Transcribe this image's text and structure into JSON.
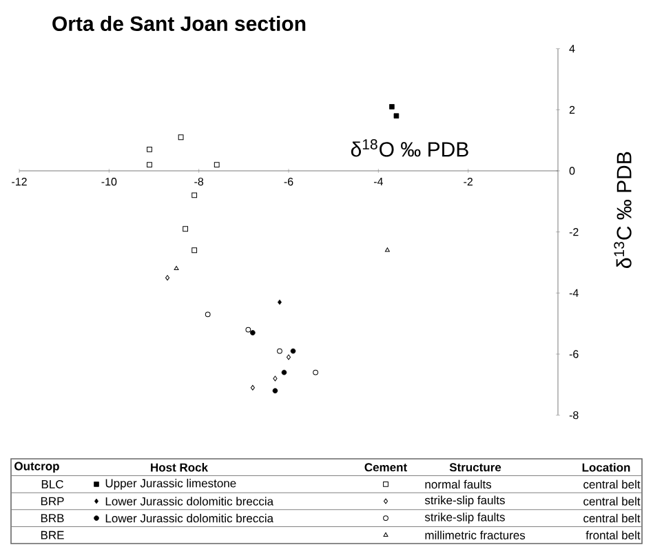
{
  "chart_data": {
    "type": "scatter",
    "title": "Orta de Sant Joan section",
    "xlabel": "δ$^{18}$O ‰ PDB",
    "ylabel": "δ$^{13}$C ‰ PDB",
    "xlim": [
      -12,
      0
    ],
    "ylim": [
      -8,
      4
    ],
    "xticks": [
      -12,
      -10,
      -8,
      -6,
      -4,
      -2
    ],
    "yticks": [
      -8,
      -6,
      -4,
      -2,
      0,
      2,
      4
    ],
    "series": [
      {
        "name": "Upper Jurassic limestone",
        "color": "#000000",
        "marker": "square",
        "x": [
          -3.7,
          -3.6
        ],
        "values": [
          2.1,
          1.8
        ]
      },
      {
        "color": "#000000",
        "marker": "square",
        "x": [
          -9.1,
          -9.1,
          -8.4,
          -7.6,
          -8.1,
          -8.3,
          -8.1
        ],
        "values": [
          0.7,
          0.2,
          1.1,
          0.2,
          -0.8,
          -1.9,
          -2.6
        ]
      },
      {
        "name": "Lower Jurassic dolomitic breccia",
        "color": "#000000",
        "marker": "diamond",
        "x": [
          -6.2
        ],
        "values": [
          -4.3
        ]
      },
      {
        "color": "#000000",
        "marker": "diamond",
        "x": [
          -8.7,
          -6.0,
          -6.3,
          -6.8
        ],
        "values": [
          -3.5,
          -6.1,
          -6.8,
          -7.1
        ]
      },
      {
        "name": "Lower Jurassic dolomitic breccia",
        "color": "#000000",
        "marker": "circle",
        "x": [
          -6.8,
          -5.9,
          -6.1,
          -6.3
        ],
        "values": [
          -5.3,
          -5.9,
          -6.6,
          -7.2
        ]
      },
      {
        "color": "#000000",
        "marker": "circle",
        "x": [
          -7.8,
          -6.9,
          -6.2,
          -5.4
        ],
        "values": [
          -4.7,
          -5.2,
          -5.9,
          -6.6
        ]
      },
      {
        "color": "#000000",
        "marker": "triangle",
        "x": [
          -8.5,
          -3.8
        ],
        "values": [
          -3.2,
          -2.6
        ]
      }
    ],
    "legend": "bottom",
    "annotations": [
      "Outcrop",
      "Host Rock",
      "Cement",
      "Structure",
      "Location",
      "BLC",
      "BRP",
      "BRB",
      "BRE",
      "normal faults",
      "strike-slip faults",
      "strike-slip faults",
      "millimetric fractures",
      "central belt",
      "central belt",
      "central belt",
      "frontal belt"
    ]
  }
}
